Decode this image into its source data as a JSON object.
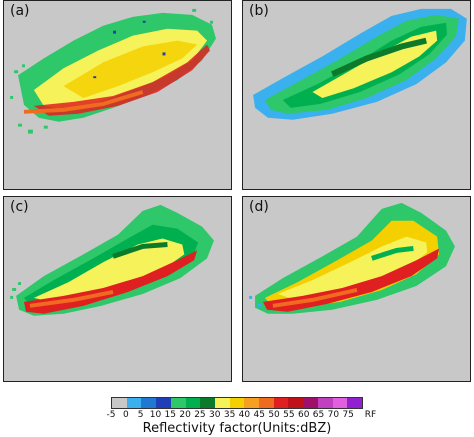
{
  "panels": [
    {
      "label": "(a)"
    },
    {
      "label": "(b)"
    },
    {
      "label": "(c)"
    },
    {
      "label": "(d)"
    }
  ],
  "colorbar": {
    "title": "Reflectivity factor(Units:dBZ)",
    "ticks": [
      "-5",
      "0",
      "5",
      "10",
      "15",
      "20",
      "25",
      "30",
      "35",
      "40",
      "45",
      "50",
      "55",
      "60",
      "65",
      "70",
      "75",
      "RF"
    ],
    "colors": [
      "#c8c8c8",
      "#3ab0ee",
      "#1f78d1",
      "#1e3fb8",
      "#2ec76a",
      "#00b050",
      "#0b7a2a",
      "#f5f25a",
      "#f5d000",
      "#f5a020",
      "#f06a20",
      "#e02020",
      "#c0101a",
      "#a0106a",
      "#c040c0",
      "#e060e0",
      "#9020d0"
    ]
  }
}
